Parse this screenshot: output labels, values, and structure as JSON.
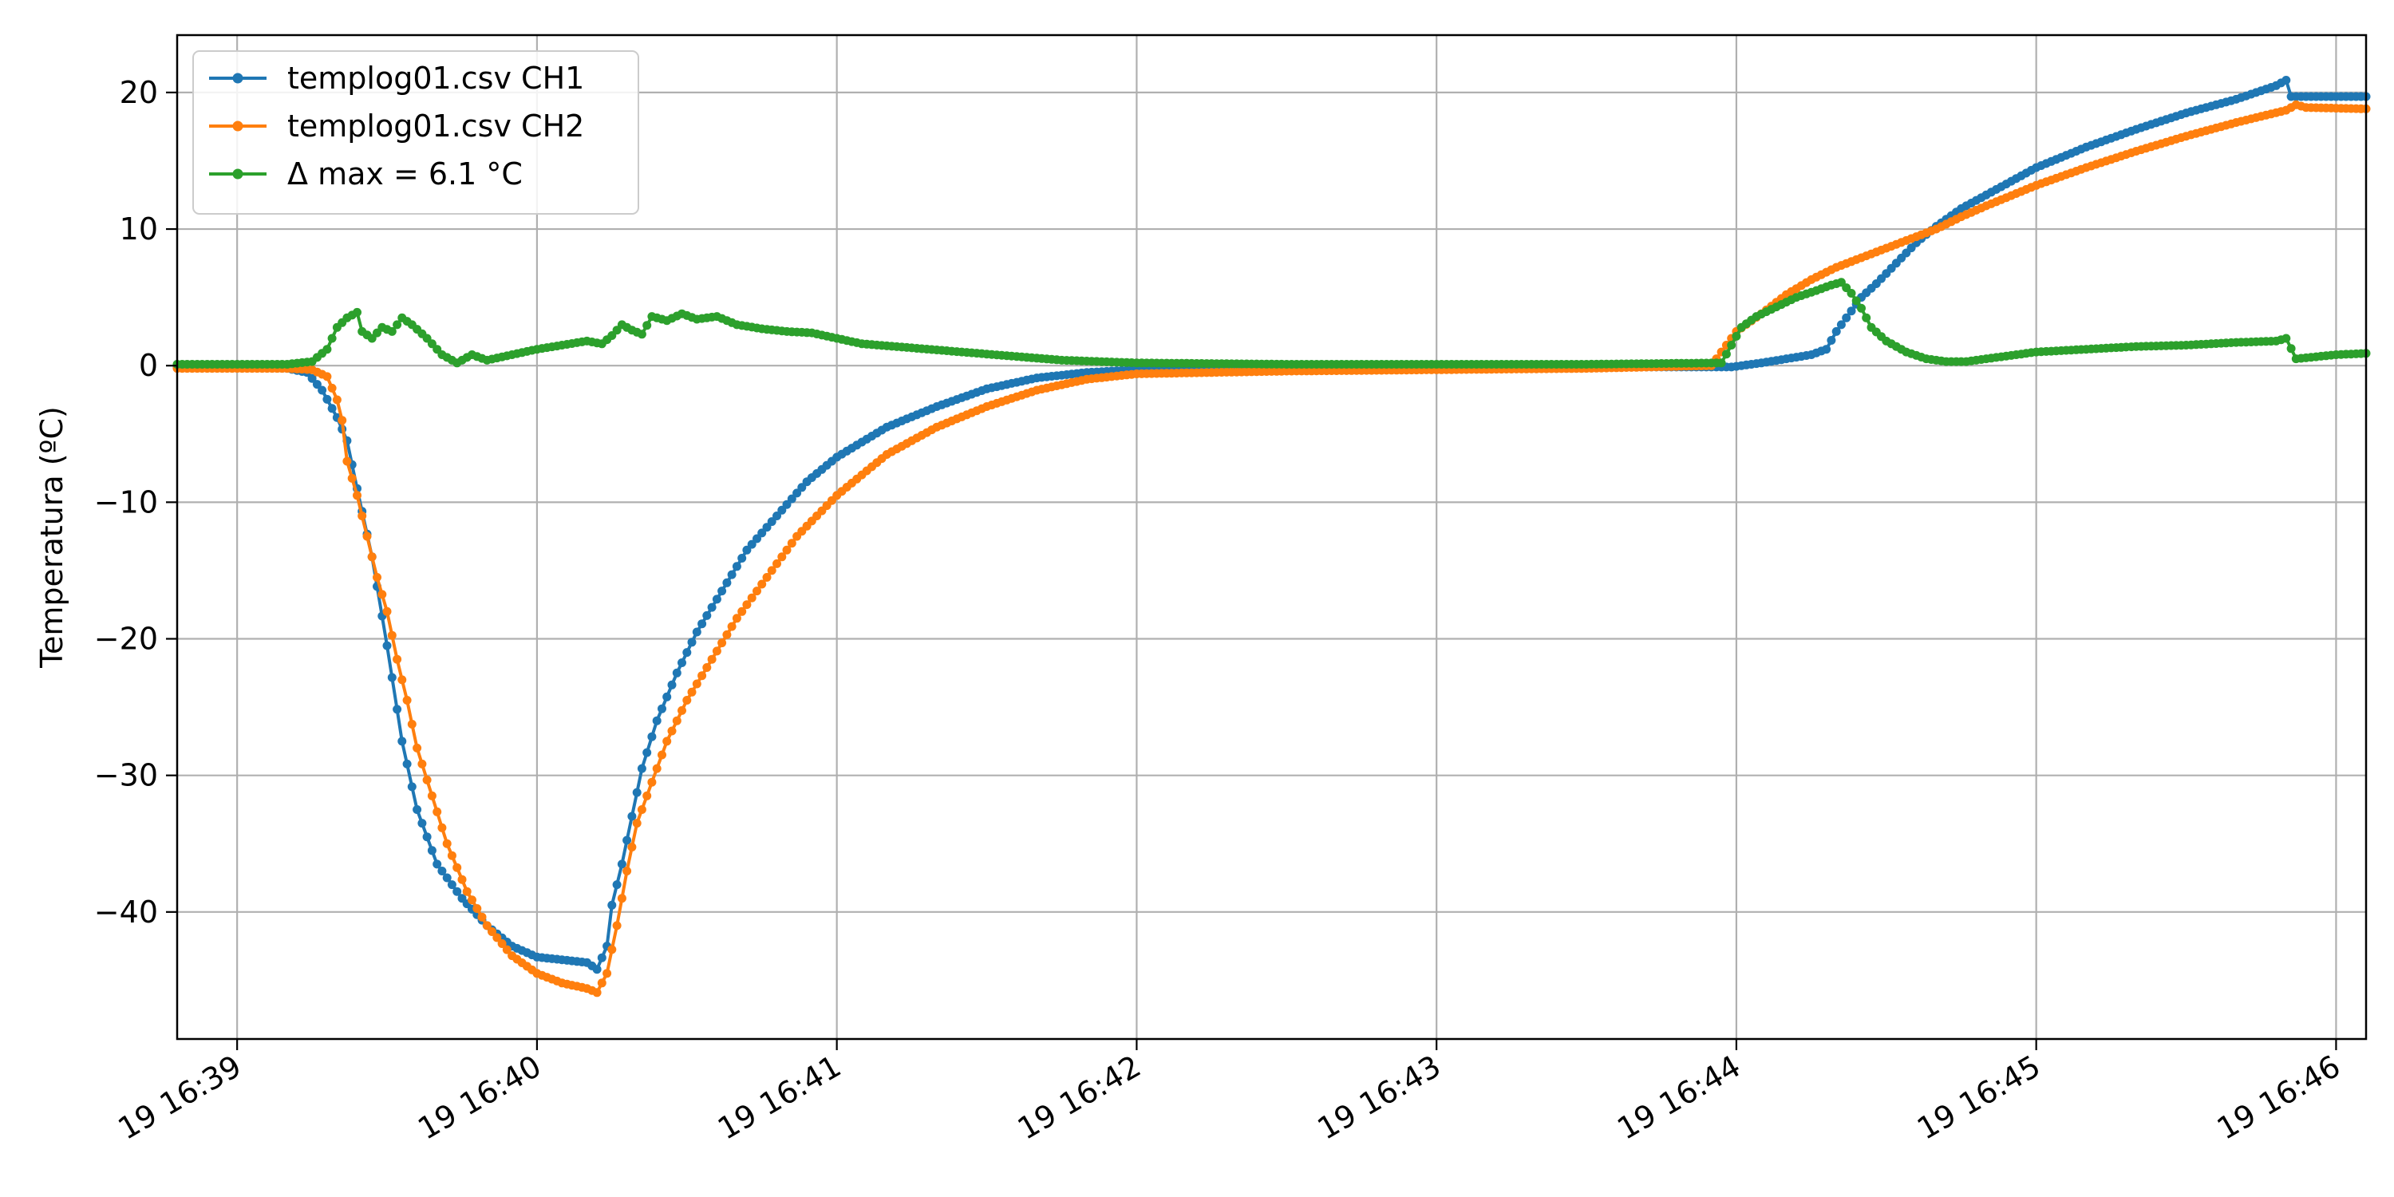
{
  "chart_data": {
    "type": "line",
    "title": "",
    "xlabel": "",
    "ylabel": "Temperatura (ºC)",
    "grid": true,
    "legend_position": "top-left",
    "x_unit": "time",
    "xlim": [
      "19 16:38:48",
      "19 16:46:06"
    ],
    "ylim": [
      -49.3,
      24.2
    ],
    "x_ticks": [
      {
        "label": "19 16:39",
        "t": "16:39:00"
      },
      {
        "label": "19 16:40",
        "t": "16:40:00"
      },
      {
        "label": "19 16:41",
        "t": "16:41:00"
      },
      {
        "label": "19 16:42",
        "t": "16:42:00"
      },
      {
        "label": "19 16:43",
        "t": "16:43:00"
      },
      {
        "label": "19 16:44",
        "t": "16:44:00"
      },
      {
        "label": "19 16:45",
        "t": "16:45:00"
      },
      {
        "label": "19 16:46",
        "t": "16:46:00"
      }
    ],
    "y_ticks": [
      {
        "label": "20",
        "value": 20
      },
      {
        "label": "10",
        "value": 10
      },
      {
        "label": "0",
        "value": 0
      },
      {
        "label": "−10",
        "value": -10
      },
      {
        "label": "−20",
        "value": -20
      },
      {
        "label": "−30",
        "value": -30
      },
      {
        "label": "−40",
        "value": -40
      }
    ],
    "series": [
      {
        "name": "templog01.csv CH1",
        "color": "#1f77b4",
        "points": [
          [
            "16:38:48",
            -0.1
          ],
          [
            "16:39:10",
            -0.2
          ],
          [
            "16:39:14",
            -0.5
          ],
          [
            "16:39:17",
            -1.8
          ],
          [
            "16:39:20",
            -3.8
          ],
          [
            "16:39:22",
            -5.5
          ],
          [
            "16:39:24",
            -9.0
          ],
          [
            "16:39:27",
            -14.0
          ],
          [
            "16:39:30",
            -20.5
          ],
          [
            "16:39:33",
            -27.5
          ],
          [
            "16:39:36",
            -32.5
          ],
          [
            "16:39:40",
            -36.5
          ],
          [
            "16:39:45",
            -39.0
          ],
          [
            "16:39:50",
            -41.0
          ],
          [
            "16:39:55",
            -42.5
          ],
          [
            "16:40:00",
            -43.3
          ],
          [
            "16:40:05",
            -43.5
          ],
          [
            "16:40:10",
            -43.7
          ],
          [
            "16:40:12",
            -44.2
          ],
          [
            "16:40:14",
            -42.5
          ],
          [
            "16:40:15",
            -39.5
          ],
          [
            "16:40:17",
            -36.5
          ],
          [
            "16:40:19",
            -33.0
          ],
          [
            "16:40:21",
            -29.5
          ],
          [
            "16:40:24",
            -26.0
          ],
          [
            "16:40:28",
            -22.5
          ],
          [
            "16:40:32",
            -19.5
          ],
          [
            "16:40:37",
            -16.5
          ],
          [
            "16:40:42",
            -13.5
          ],
          [
            "16:40:48",
            -11.0
          ],
          [
            "16:40:54",
            -8.5
          ],
          [
            "16:41:00",
            -6.7
          ],
          [
            "16:41:10",
            -4.5
          ],
          [
            "16:41:20",
            -3.0
          ],
          [
            "16:41:30",
            -1.7
          ],
          [
            "16:41:40",
            -0.9
          ],
          [
            "16:41:50",
            -0.5
          ],
          [
            "16:42:00",
            -0.3
          ],
          [
            "16:42:30",
            -0.2
          ],
          [
            "16:43:00",
            -0.1
          ],
          [
            "16:43:30",
            -0.1
          ],
          [
            "16:43:59",
            -0.1
          ],
          [
            "16:44:05",
            0.2
          ],
          [
            "16:44:10",
            0.5
          ],
          [
            "16:44:15",
            0.8
          ],
          [
            "16:44:18",
            1.2
          ],
          [
            "16:44:20",
            2.5
          ],
          [
            "16:44:22",
            3.5
          ],
          [
            "16:44:25",
            5.0
          ],
          [
            "16:44:28",
            6.0
          ],
          [
            "16:44:32",
            7.5
          ],
          [
            "16:44:36",
            9.0
          ],
          [
            "16:44:40",
            10.2
          ],
          [
            "16:44:45",
            11.5
          ],
          [
            "16:44:50",
            12.5
          ],
          [
            "16:45:00",
            14.5
          ],
          [
            "16:45:10",
            16.0
          ],
          [
            "16:45:20",
            17.3
          ],
          [
            "16:45:30",
            18.5
          ],
          [
            "16:45:40",
            19.5
          ],
          [
            "16:45:48",
            20.5
          ],
          [
            "16:45:50",
            20.9
          ],
          [
            "16:45:51",
            19.7
          ],
          [
            "16:46:06",
            19.7
          ]
        ]
      },
      {
        "name": "templog01.csv CH2",
        "color": "#ff7f0e",
        "points": [
          [
            "16:38:48",
            -0.2
          ],
          [
            "16:39:10",
            -0.2
          ],
          [
            "16:39:15",
            -0.3
          ],
          [
            "16:39:18",
            -0.8
          ],
          [
            "16:39:20",
            -2.5
          ],
          [
            "16:39:21",
            -4.0
          ],
          [
            "16:39:22",
            -7.0
          ],
          [
            "16:39:24",
            -9.5
          ],
          [
            "16:39:26",
            -12.5
          ],
          [
            "16:39:28",
            -15.5
          ],
          [
            "16:39:30",
            -18.0
          ],
          [
            "16:39:32",
            -21.5
          ],
          [
            "16:39:34",
            -24.5
          ],
          [
            "16:39:36",
            -28.0
          ],
          [
            "16:39:39",
            -31.5
          ],
          [
            "16:39:42",
            -35.0
          ],
          [
            "16:39:46",
            -38.5
          ],
          [
            "16:39:50",
            -41.0
          ],
          [
            "16:39:55",
            -43.2
          ],
          [
            "16:40:00",
            -44.5
          ],
          [
            "16:40:05",
            -45.2
          ],
          [
            "16:40:10",
            -45.6
          ],
          [
            "16:40:12",
            -45.9
          ],
          [
            "16:40:14",
            -44.5
          ],
          [
            "16:40:16",
            -41.0
          ],
          [
            "16:40:18",
            -37.0
          ],
          [
            "16:40:20",
            -33.5
          ],
          [
            "16:40:23",
            -30.5
          ],
          [
            "16:40:26",
            -27.5
          ],
          [
            "16:40:30",
            -24.5
          ],
          [
            "16:40:35",
            -21.5
          ],
          [
            "16:40:40",
            -18.5
          ],
          [
            "16:40:46",
            -15.5
          ],
          [
            "16:40:52",
            -12.5
          ],
          [
            "16:41:00",
            -9.5
          ],
          [
            "16:41:10",
            -6.5
          ],
          [
            "16:41:20",
            -4.5
          ],
          [
            "16:41:30",
            -3.0
          ],
          [
            "16:41:40",
            -1.8
          ],
          [
            "16:41:50",
            -1.0
          ],
          [
            "16:42:00",
            -0.6
          ],
          [
            "16:42:30",
            -0.4
          ],
          [
            "16:43:00",
            -0.3
          ],
          [
            "16:43:30",
            -0.2
          ],
          [
            "16:43:55",
            0.0
          ],
          [
            "16:44:00",
            2.5
          ],
          [
            "16:44:05",
            3.8
          ],
          [
            "16:44:10",
            5.2
          ],
          [
            "16:44:15",
            6.3
          ],
          [
            "16:44:20",
            7.2
          ],
          [
            "16:44:25",
            7.9
          ],
          [
            "16:44:30",
            8.6
          ],
          [
            "16:44:35",
            9.3
          ],
          [
            "16:44:40",
            10.0
          ],
          [
            "16:44:45",
            10.9
          ],
          [
            "16:44:50",
            11.7
          ],
          [
            "16:45:00",
            13.2
          ],
          [
            "16:45:10",
            14.5
          ],
          [
            "16:45:20",
            15.7
          ],
          [
            "16:45:30",
            16.8
          ],
          [
            "16:45:40",
            17.8
          ],
          [
            "16:45:50",
            18.7
          ],
          [
            "16:45:52",
            19.1
          ],
          [
            "16:45:54",
            18.9
          ],
          [
            "16:46:06",
            18.8
          ]
        ]
      },
      {
        "name": "Δ max = 6.1 °C",
        "color": "#2ca02c",
        "points": [
          [
            "16:38:48",
            0.1
          ],
          [
            "16:39:10",
            0.1
          ],
          [
            "16:39:15",
            0.3
          ],
          [
            "16:39:18",
            1.2
          ],
          [
            "16:39:20",
            2.8
          ],
          [
            "16:39:22",
            3.5
          ],
          [
            "16:39:24",
            3.9
          ],
          [
            "16:39:25",
            2.5
          ],
          [
            "16:39:27",
            2.0
          ],
          [
            "16:39:29",
            2.8
          ],
          [
            "16:39:31",
            2.5
          ],
          [
            "16:39:33",
            3.5
          ],
          [
            "16:39:35",
            3.0
          ],
          [
            "16:39:38",
            2.0
          ],
          [
            "16:39:41",
            0.8
          ],
          [
            "16:39:44",
            0.2
          ],
          [
            "16:39:47",
            0.8
          ],
          [
            "16:39:50",
            0.4
          ],
          [
            "16:39:55",
            0.8
          ],
          [
            "16:40:00",
            1.2
          ],
          [
            "16:40:05",
            1.5
          ],
          [
            "16:40:10",
            1.8
          ],
          [
            "16:40:13",
            1.6
          ],
          [
            "16:40:15",
            2.2
          ],
          [
            "16:40:17",
            3.0
          ],
          [
            "16:40:19",
            2.6
          ],
          [
            "16:40:21",
            2.3
          ],
          [
            "16:40:23",
            3.6
          ],
          [
            "16:40:26",
            3.3
          ],
          [
            "16:40:29",
            3.8
          ],
          [
            "16:40:32",
            3.4
          ],
          [
            "16:40:36",
            3.6
          ],
          [
            "16:40:40",
            3.0
          ],
          [
            "16:40:45",
            2.7
          ],
          [
            "16:40:50",
            2.5
          ],
          [
            "16:40:55",
            2.4
          ],
          [
            "16:41:00",
            2.0
          ],
          [
            "16:41:05",
            1.6
          ],
          [
            "16:41:15",
            1.3
          ],
          [
            "16:41:25",
            1.0
          ],
          [
            "16:41:35",
            0.7
          ],
          [
            "16:41:45",
            0.4
          ],
          [
            "16:42:00",
            0.2
          ],
          [
            "16:42:30",
            0.1
          ],
          [
            "16:43:00",
            0.1
          ],
          [
            "16:43:30",
            0.1
          ],
          [
            "16:43:57",
            0.2
          ],
          [
            "16:43:59",
            1.5
          ],
          [
            "16:44:01",
            2.8
          ],
          [
            "16:44:04",
            3.6
          ],
          [
            "16:44:08",
            4.3
          ],
          [
            "16:44:12",
            5.0
          ],
          [
            "16:44:16",
            5.5
          ],
          [
            "16:44:19",
            5.9
          ],
          [
            "16:44:21",
            6.1
          ],
          [
            "16:44:23",
            5.3
          ],
          [
            "16:44:25",
            4.2
          ],
          [
            "16:44:27",
            2.8
          ],
          [
            "16:44:30",
            1.8
          ],
          [
            "16:44:34",
            1.0
          ],
          [
            "16:44:38",
            0.5
          ],
          [
            "16:44:42",
            0.3
          ],
          [
            "16:44:46",
            0.3
          ],
          [
            "16:44:50",
            0.5
          ],
          [
            "16:45:00",
            1.0
          ],
          [
            "16:45:10",
            1.2
          ],
          [
            "16:45:20",
            1.4
          ],
          [
            "16:45:30",
            1.5
          ],
          [
            "16:45:40",
            1.7
          ],
          [
            "16:45:48",
            1.8
          ],
          [
            "16:45:50",
            2.0
          ],
          [
            "16:45:52",
            0.5
          ],
          [
            "16:46:00",
            0.8
          ],
          [
            "16:46:06",
            0.9
          ]
        ]
      }
    ]
  }
}
